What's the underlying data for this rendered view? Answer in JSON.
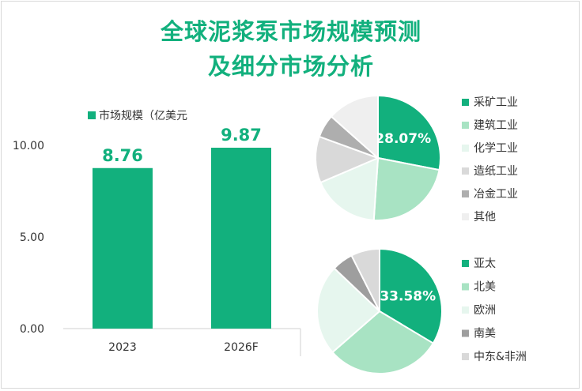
{
  "title_line1": "全球泥浆泵市场规模预测",
  "title_line2": "及细分市场分析",
  "colors": {
    "accent": "#12b07d",
    "pie_palette": [
      "#12b07d",
      "#a8e3c3",
      "#e6f6ee",
      "#d9d9d9",
      "#aeaeae",
      "#efefef"
    ],
    "pie2_palette": [
      "#12b07d",
      "#a8e3c3",
      "#e6f6ee",
      "#9e9e9e",
      "#d9d9d9"
    ]
  },
  "chart_data": [
    {
      "type": "bar",
      "legend": "市场规模（亿美元",
      "categories": [
        "2023",
        "2026F"
      ],
      "values": [
        8.76,
        9.87
      ],
      "value_labels": [
        "8.76",
        "9.87"
      ],
      "y_ticks": [
        "0.00",
        "5.00",
        "10.00"
      ],
      "ylim": [
        0,
        10
      ],
      "grid": false
    },
    {
      "type": "pie",
      "labels": [
        "采矿工业",
        "建筑工业",
        "化学工业",
        "造纸工业",
        "冶金工业",
        "其他"
      ],
      "values": [
        28.07,
        23.0,
        17.5,
        12.0,
        6.0,
        13.43
      ],
      "highlight_label": "28.07%",
      "legend_position": "right"
    },
    {
      "type": "pie",
      "labels": [
        "亚太",
        "北美",
        "欧洲",
        "南美",
        "中东&非洲"
      ],
      "values": [
        33.58,
        30.0,
        23.5,
        5.5,
        7.42
      ],
      "highlight_label": "33.58%",
      "legend_position": "right"
    }
  ]
}
